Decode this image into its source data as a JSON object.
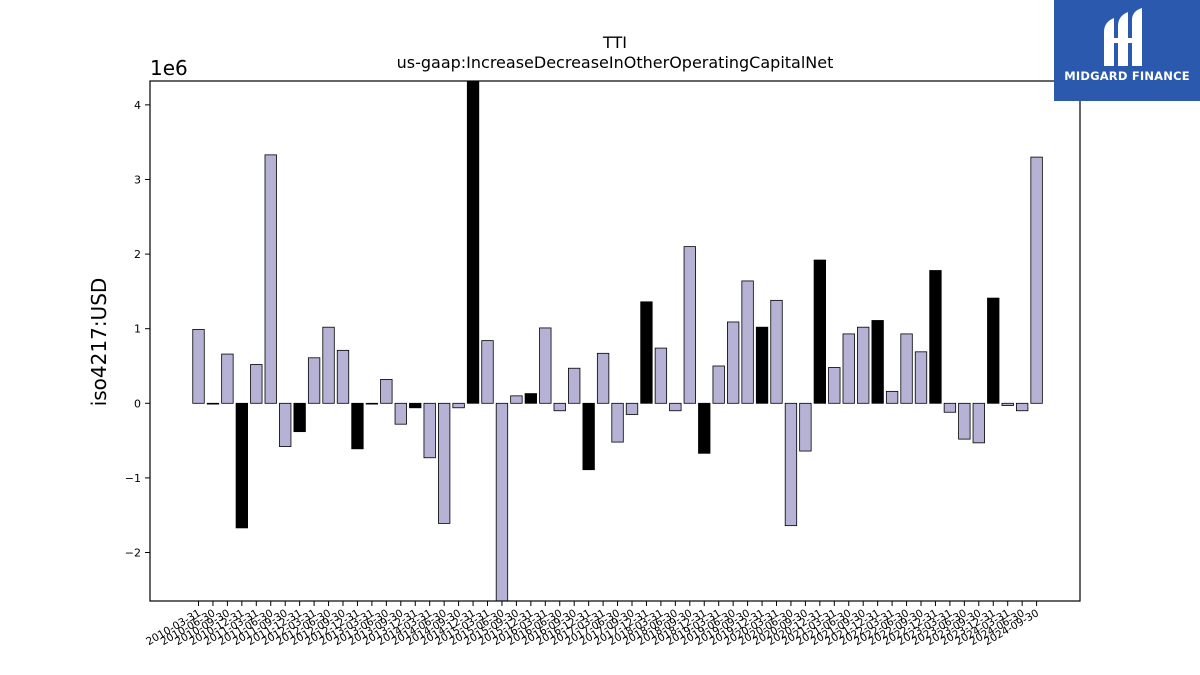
{
  "brand": {
    "name": "MIDGARD FINANCE",
    "logo_icon": "midgard-finance-logo-icon",
    "bg_color": "#2b59ad"
  },
  "colors": {
    "bar_default": "#b6b2d6",
    "bar_highlight": "#000000",
    "edge": "#000000"
  },
  "chart_data": {
    "type": "bar",
    "title": "TTI",
    "subtitle": "us-gaap:IncreaseDecreaseInOtherOperatingCapitalNet",
    "ylabel": "iso4217:USD",
    "xlabel": "",
    "y_scale_label": "1e6",
    "ylim": [
      -2.65,
      4.32
    ],
    "yticks": [
      -2,
      -1,
      0,
      1,
      2,
      3,
      4
    ],
    "ytick_labels": [
      "−2",
      "−1",
      "0",
      "1",
      "2",
      "3",
      "4"
    ],
    "grid": false,
    "legend": "none",
    "categories": [
      "2010-03-31",
      "2010-06-30",
      "2010-09-30",
      "2010-12-31",
      "2011-03-31",
      "2011-06-30",
      "2011-09-30",
      "2011-12-31",
      "2012-03-31",
      "2012-06-30",
      "2012-09-30",
      "2012-12-31",
      "2013-03-31",
      "2013-06-30",
      "2013-09-30",
      "2013-12-31",
      "2014-03-31",
      "2014-06-30",
      "2014-09-30",
      "2014-12-31",
      "2015-03-31",
      "2015-06-30",
      "2015-09-30",
      "2015-12-31",
      "2016-03-31",
      "2016-06-30",
      "2016-09-30",
      "2016-12-31",
      "2017-03-31",
      "2017-06-30",
      "2017-09-30",
      "2017-12-31",
      "2018-03-31",
      "2018-06-30",
      "2018-09-30",
      "2018-12-31",
      "2019-03-31",
      "2019-06-30",
      "2019-09-30",
      "2019-12-31",
      "2020-03-31",
      "2020-06-30",
      "2020-09-30",
      "2020-12-31",
      "2021-03-31",
      "2021-06-30",
      "2021-09-30",
      "2021-12-31",
      "2022-03-31",
      "2022-06-30",
      "2022-09-30",
      "2022-12-31",
      "2023-03-31",
      "2023-06-30",
      "2023-09-30",
      "2023-12-31",
      "2024-03-31",
      "2024-06-30",
      "2024-09-30"
    ],
    "values": [
      0.99,
      0.0,
      0.66,
      -1.67,
      0.52,
      3.33,
      -0.58,
      -0.38,
      0.61,
      1.02,
      0.71,
      -0.61,
      0.0,
      0.32,
      -0.28,
      -0.06,
      -0.73,
      -1.61,
      -0.06,
      4.35,
      0.84,
      -2.7,
      0.1,
      0.13,
      1.01,
      -0.1,
      0.47,
      -0.89,
      0.67,
      -0.52,
      -0.15,
      1.36,
      0.74,
      -0.1,
      2.1,
      -0.67,
      0.5,
      1.09,
      1.64,
      1.02,
      1.38,
      -1.64,
      -0.64,
      1.92,
      0.48,
      0.93,
      1.02,
      1.11,
      0.16,
      0.93,
      0.69,
      1.78,
      -0.12,
      -0.48,
      -0.53,
      1.41,
      -0.03,
      -0.1,
      3.3
    ],
    "highlight": [
      false,
      false,
      false,
      true,
      false,
      false,
      false,
      true,
      false,
      false,
      false,
      true,
      false,
      false,
      false,
      true,
      false,
      false,
      false,
      true,
      false,
      false,
      false,
      true,
      false,
      false,
      false,
      true,
      false,
      false,
      false,
      true,
      false,
      false,
      false,
      true,
      false,
      false,
      false,
      true,
      false,
      false,
      false,
      true,
      false,
      false,
      false,
      true,
      false,
      false,
      false,
      true,
      false,
      false,
      false,
      true,
      false,
      false,
      false
    ]
  }
}
